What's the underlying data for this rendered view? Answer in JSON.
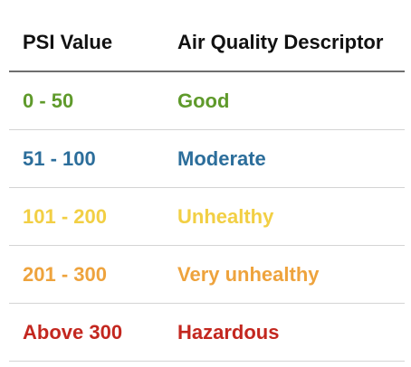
{
  "table": {
    "headers": [
      "PSI Value",
      "Air Quality Descriptor"
    ],
    "rows": [
      {
        "psi": "0 - 50",
        "descriptor": "Good",
        "color": "#5f9a2b"
      },
      {
        "psi": "51 - 100",
        "descriptor": "Moderate",
        "color": "#2c6e9b"
      },
      {
        "psi": "101 - 200",
        "descriptor": "Unhealthy",
        "color": "#f2cf44"
      },
      {
        "psi": "201 - 300",
        "descriptor": "Very unhealthy",
        "color": "#eea33d"
      },
      {
        "psi": "Above 300",
        "descriptor": "Hazardous",
        "color": "#c3271f"
      }
    ]
  }
}
